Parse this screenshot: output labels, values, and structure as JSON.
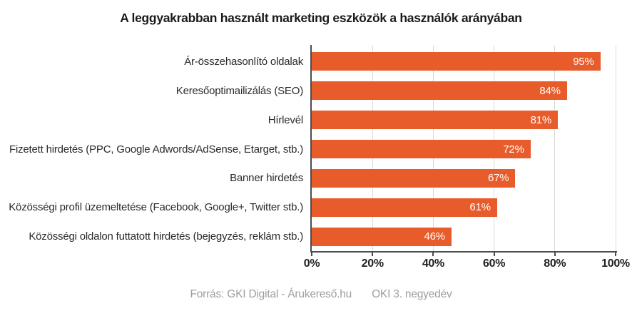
{
  "title": "A leggyakrabban használt marketing eszközök a használók arányában",
  "footer": {
    "source": "Forrás: GKI Digital - Árukereső.hu",
    "period": "OKI 3. negyedév"
  },
  "colors": {
    "bar": "#e85c2b",
    "axis": "#4d4d4d",
    "gridline": "#d9d9d9",
    "value_label": "#ffffff",
    "category_label": "#2b2b2b",
    "footer_text": "#9e9e9e"
  },
  "chart_data": {
    "type": "bar",
    "orientation": "horizontal",
    "title": "A leggyakrabban használt marketing eszközök a használók arányában",
    "categories": [
      "Ár-összehasonlító oldalak",
      "Keresőoptimailizálás (SEO)",
      "Hírlevél",
      "Fizetett hirdetés (PPC, Google Adwords/AdSense, Etarget, stb.)",
      "Banner hirdetés",
      "Közösségi profil üzemeltetése (Facebook, Google+, Twitter stb.)",
      "Közösségi oldalon futtatott hirdetés (bejegyzés, reklám stb.)"
    ],
    "values": [
      95,
      84,
      81,
      72,
      67,
      61,
      46
    ],
    "value_labels": [
      "95%",
      "84%",
      "81%",
      "72%",
      "67%",
      "61%",
      "46%"
    ],
    "xlabel": "",
    "ylabel": "",
    "xlim": [
      0,
      100
    ],
    "x_tick_values": [
      0,
      20,
      40,
      60,
      80,
      100
    ],
    "x_tick_labels": [
      "0%",
      "20%",
      "40%",
      "60%",
      "80%",
      "100%"
    ],
    "grid": true,
    "legend": false
  }
}
